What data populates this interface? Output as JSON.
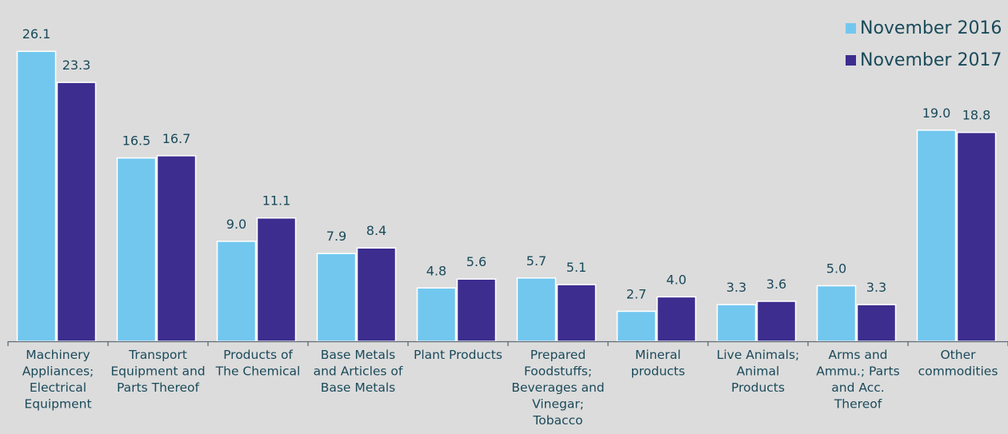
{
  "chart_data": {
    "type": "bar",
    "categories": [
      [
        "Machinery",
        "Appliances;",
        "Electrical",
        "Equipment"
      ],
      [
        "Transport",
        "Equipment and",
        "Parts Thereof"
      ],
      [
        "Products of",
        "The Chemical"
      ],
      [
        "Base Metals",
        "and Articles of",
        "Base Metals"
      ],
      [
        "Plant Products"
      ],
      [
        "Prepared",
        "Foodstuffs;",
        "Beverages and",
        "Vinegar;",
        "Tobacco"
      ],
      [
        "Mineral",
        "products"
      ],
      [
        "Live Animals;",
        "Animal",
        "Products"
      ],
      [
        "Arms and",
        "Ammu.; Parts",
        "and Acc.",
        "Thereof"
      ],
      [
        "Other",
        "commodities"
      ]
    ],
    "series": [
      {
        "name": "November 2016",
        "color": "#72c7ef",
        "values": [
          26.1,
          16.5,
          9.0,
          7.9,
          4.8,
          5.7,
          2.7,
          3.3,
          5.0,
          19.0
        ],
        "labels": [
          "26.1",
          "16.5",
          "9.0",
          "7.9",
          "4.8",
          "5.7",
          "2.7",
          "3.3",
          "5.0",
          "19.0"
        ]
      },
      {
        "name": "November 2017",
        "color": "#3c2d8f",
        "values": [
          23.3,
          16.7,
          11.1,
          8.4,
          5.6,
          5.1,
          4.0,
          3.6,
          3.3,
          18.8
        ],
        "labels": [
          "23.3",
          "16.7",
          "11.1",
          "8.4",
          "5.6",
          "5.1",
          "4.0",
          "3.6",
          "3.3",
          "18.8"
        ]
      }
    ],
    "legend_position": "top-right",
    "grid": false
  }
}
